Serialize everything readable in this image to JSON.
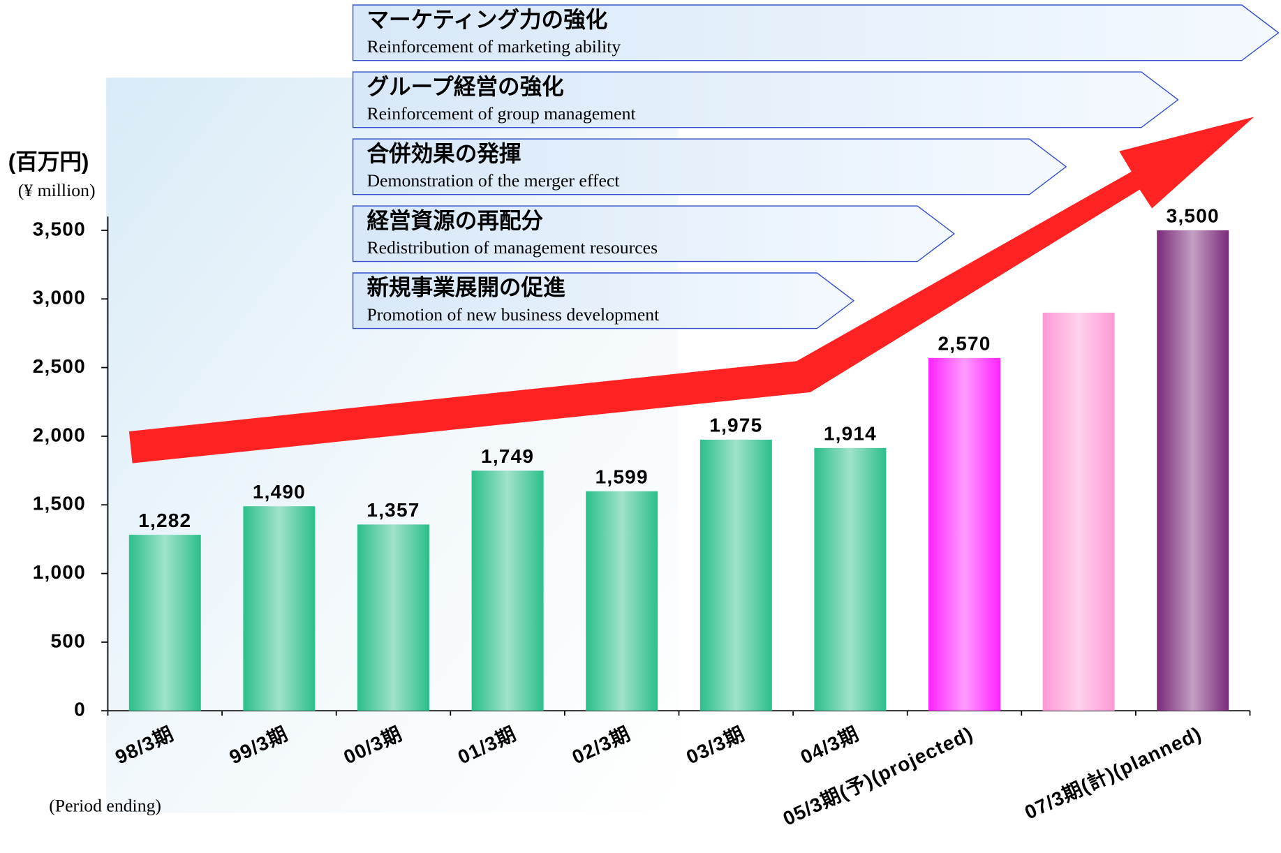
{
  "chart_data": {
    "type": "bar",
    "y_label": "(百万円)",
    "y_label_en": "(¥ million)",
    "x_label": "(Period ending)",
    "categories": [
      "98/3期",
      "99/3期",
      "00/3期",
      "01/3期",
      "02/3期",
      "03/3期",
      "04/3期",
      "05/3期(予)(projected)",
      null,
      "07/3期(計)(planned)"
    ],
    "values": [
      1282,
      1490,
      1357,
      1749,
      1599,
      1975,
      1914,
      2570,
      2900,
      3500
    ],
    "value_labels": [
      "1,282",
      "1,490",
      "1,357",
      "1,749",
      "1,599",
      "1,975",
      "1,914",
      "2,570",
      null,
      "3,500"
    ],
    "colors": [
      "#2cbf8a",
      "#2cbf8a",
      "#2cbf8a",
      "#2cbf8a",
      "#2cbf8a",
      "#2cbf8a",
      "#2cbf8a",
      "#ff22ff",
      "#ff99d6",
      "#7a2a7a"
    ],
    "ylim": [
      0,
      3600
    ],
    "yticks": [
      0,
      500,
      {
        "value": 1000,
        "label": "1,000"
      },
      {
        "value": 1500,
        "label": "1,500"
      },
      {
        "value": 2000,
        "label": "2,000"
      },
      {
        "value": 2500,
        "label": "2,500"
      },
      {
        "value": 3000,
        "label": "3,000"
      },
      {
        "value": 3500,
        "label": "3,500"
      }
    ]
  },
  "banners": [
    {
      "ja": "マーケティング力の強化",
      "en": "Reinforcement of marketing ability"
    },
    {
      "ja": "グループ経営の強化",
      "en": "Reinforcement of group management"
    },
    {
      "ja": "合併効果の発揮",
      "en": "Demonstration of the merger effect"
    },
    {
      "ja": "経営資源の再配分",
      "en": "Redistribution of management resources"
    },
    {
      "ja": "新規事業展開の促進",
      "en": "Promotion of new business development"
    }
  ]
}
